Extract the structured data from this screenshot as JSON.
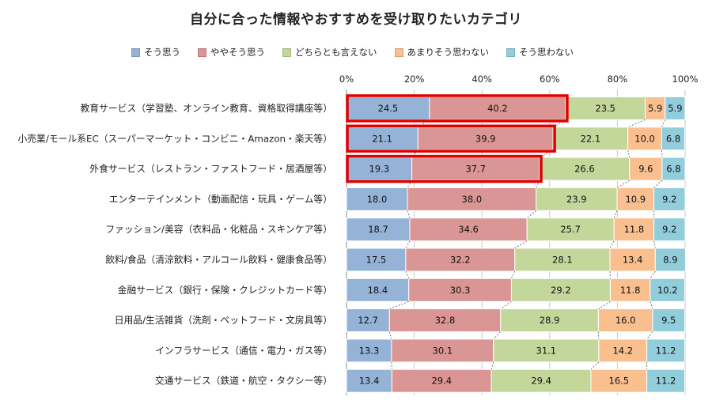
{
  "chart_data": {
    "type": "bar",
    "orientation": "horizontal",
    "stacked": true,
    "title": "自分に合った情報やおすすめを受け取りたいカテゴリ",
    "legend_position": "top",
    "xlim": [
      0,
      100
    ],
    "x_ticks": [
      "0%",
      "20%",
      "40%",
      "60%",
      "80%",
      "100%"
    ],
    "grid": true,
    "categories": [
      "教育サービス（学習塾、オンライン教育、資格取得講座等）",
      "小売業/モール系EC（スーパーマーケット・コンビニ・Amazon・楽天等）",
      "外食サービス（レストラン・ファストフード・居酒屋等）",
      "エンターテインメント（動画配信・玩具・ゲーム等）",
      "ファッション/美容（衣料品・化粧品・スキンケア等）",
      "飲料/食品（清涼飲料・アルコール飲料・健康食品等）",
      "金融サービス（銀行・保険・クレジットカード等）",
      "日用品/生活雑貨（洗剤・ペットフード・文房具等）",
      "インフラサービス（通信・電力・ガス等）",
      "交通サービス（鉄道・航空・タクシー等）"
    ],
    "series": [
      {
        "name": "そう思う",
        "color": "#95b3d7",
        "values": [
          24.5,
          21.1,
          19.3,
          18.0,
          18.7,
          17.5,
          18.4,
          12.7,
          13.3,
          13.4
        ]
      },
      {
        "name": "ややそう思う",
        "color": "#da9694",
        "values": [
          40.2,
          39.9,
          37.7,
          38.0,
          34.6,
          32.2,
          30.3,
          32.8,
          30.1,
          29.4
        ]
      },
      {
        "name": "どちらとも言えない",
        "color": "#c4d79b",
        "values": [
          23.5,
          22.1,
          26.6,
          23.9,
          25.7,
          28.1,
          29.2,
          28.9,
          31.1,
          29.4
        ]
      },
      {
        "name": "あまりそう思わない",
        "color": "#fabf8f",
        "values": [
          5.9,
          10.0,
          9.6,
          10.9,
          11.8,
          13.4,
          11.8,
          16.0,
          14.2,
          16.5
        ]
      },
      {
        "name": "そう思わない",
        "color": "#92cddc",
        "values": [
          5.9,
          6.8,
          6.8,
          9.2,
          9.2,
          8.9,
          10.2,
          9.5,
          11.2,
          11.2
        ]
      }
    ],
    "highlight": {
      "color": "#e00000",
      "rows": [
        0,
        1,
        2
      ],
      "series_count": 2
    }
  }
}
